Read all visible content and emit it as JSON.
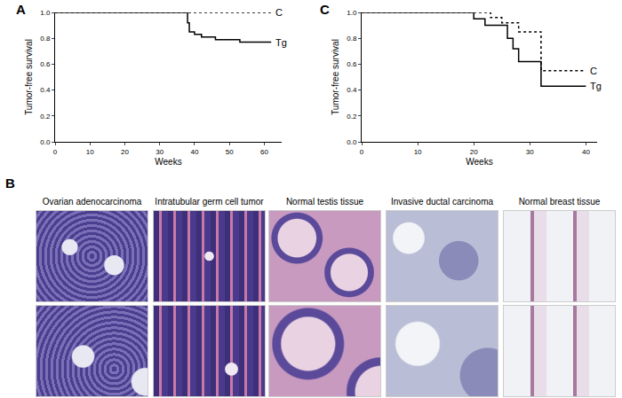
{
  "chart_data": [
    {
      "panel": "A",
      "type": "line",
      "x_label": "Weeks",
      "y_label": "Tumor-free survival",
      "xlim": [
        0,
        65
      ],
      "xticks": [
        0,
        10,
        20,
        30,
        40,
        50,
        60
      ],
      "ylim": [
        0,
        1.0
      ],
      "yticks": [
        {
          "value": 0,
          "label": "0.0"
        },
        {
          "value": 0.2,
          "label": "0.2"
        },
        {
          "value": 0.4,
          "label": "0.4"
        },
        {
          "value": 0.6,
          "label": "0.6"
        },
        {
          "value": 0.8,
          "label": "0.8"
        },
        {
          "value": 1.0,
          "label": "1.0"
        }
      ],
      "grid": false,
      "series": [
        {
          "name": "C",
          "color": "#000000",
          "line_style": "dot",
          "x": [
            0,
            62
          ],
          "values": [
            1.0,
            1.0
          ]
        },
        {
          "name": "Tg",
          "color": "#000000",
          "line_style": "solid",
          "x": [
            0,
            38,
            38.5,
            40,
            42,
            46,
            53,
            62
          ],
          "values": [
            1.0,
            0.92,
            0.85,
            0.83,
            0.81,
            0.79,
            0.77,
            0.77
          ]
        }
      ]
    },
    {
      "panel": "C",
      "type": "line",
      "x_label": "Weeks",
      "y_label": "Tumor-free survival",
      "xlim": [
        0,
        42
      ],
      "xticks": [
        0,
        10,
        20,
        30,
        40
      ],
      "ylim": [
        0,
        1.0
      ],
      "yticks": [
        {
          "value": 0,
          "label": "0.0"
        },
        {
          "value": 0.2,
          "label": "0.2"
        },
        {
          "value": 0.4,
          "label": "0.4"
        },
        {
          "value": 0.6,
          "label": "0.6"
        },
        {
          "value": 0.8,
          "label": "0.8"
        },
        {
          "value": 1.0,
          "label": "1.0"
        }
      ],
      "grid": false,
      "series": [
        {
          "name": "C",
          "color": "#000000",
          "line_style": "dot",
          "x": [
            0,
            23,
            25,
            28,
            32,
            40
          ],
          "values": [
            1.0,
            0.96,
            0.92,
            0.85,
            0.55,
            0.55
          ]
        },
        {
          "name": "Tg",
          "color": "#000000",
          "line_style": "solid",
          "x": [
            0,
            20,
            22,
            26,
            27,
            28,
            32,
            40
          ],
          "values": [
            1.0,
            0.95,
            0.9,
            0.8,
            0.72,
            0.62,
            0.43,
            0.43
          ]
        }
      ]
    }
  ],
  "panel_b": {
    "panel": "B",
    "images": [
      "Ovarian adenocarcinoma",
      "Intratubular germ cell tumor",
      "Normal testis tissue",
      "Invasive ductal carcinoma",
      "Normal breast tissue"
    ]
  }
}
